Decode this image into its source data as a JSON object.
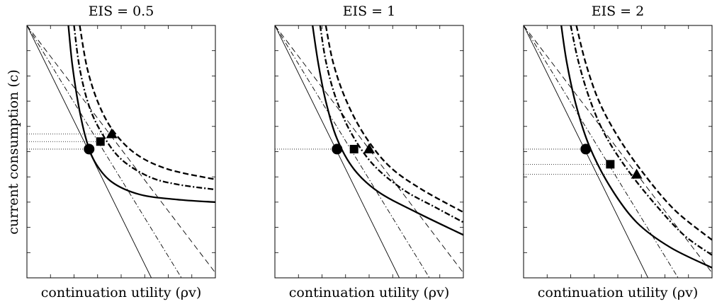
{
  "figure": {
    "ylabel": "current consumption (c)",
    "xlabel": "continuation utility (ρv)"
  },
  "chart_data": [
    {
      "type": "line",
      "title": "EIS = 0.5",
      "xlabel": "continuation utility (ρv)",
      "ylabel": "current consumption (c)",
      "xlim": [
        0,
        1
      ],
      "ylim": [
        0,
        1
      ],
      "grid": false,
      "series": [
        {
          "style": "thin-solid",
          "points": [
            [
              0,
              1
            ],
            [
              0.66,
              0
            ]
          ]
        },
        {
          "style": "thin-dash-dot",
          "points": [
            [
              0,
              1
            ],
            [
              0.82,
              0
            ]
          ]
        },
        {
          "style": "thin-dashed",
          "points": [
            [
              0,
              1
            ],
            [
              1,
              0.02
            ]
          ]
        },
        {
          "style": "thick-solid",
          "points": [
            [
              0.22,
              1
            ],
            [
              0.24,
              0.85
            ],
            [
              0.27,
              0.7
            ],
            [
              0.31,
              0.56
            ],
            [
              0.36,
              0.46
            ],
            [
              0.45,
              0.38
            ],
            [
              0.6,
              0.33
            ],
            [
              0.8,
              0.31
            ],
            [
              1,
              0.3
            ]
          ]
        },
        {
          "style": "thick-dash-dot",
          "points": [
            [
              0.25,
              1
            ],
            [
              0.28,
              0.83
            ],
            [
              0.33,
              0.68
            ],
            [
              0.4,
              0.57
            ],
            [
              0.5,
              0.47
            ],
            [
              0.65,
              0.4
            ],
            [
              0.8,
              0.37
            ],
            [
              1,
              0.35
            ]
          ]
        },
        {
          "style": "thick-dashed",
          "points": [
            [
              0.28,
              1
            ],
            [
              0.32,
              0.83
            ],
            [
              0.38,
              0.69
            ],
            [
              0.46,
              0.58
            ],
            [
              0.58,
              0.49
            ],
            [
              0.75,
              0.43
            ],
            [
              1,
              0.39
            ]
          ]
        }
      ],
      "markers": [
        {
          "shape": "circle",
          "x": 0.33,
          "y": 0.51
        },
        {
          "shape": "square",
          "x": 0.39,
          "y": 0.54
        },
        {
          "shape": "triangle",
          "x": 0.45,
          "y": 0.57
        }
      ],
      "guide_levels": [
        0.51,
        0.54,
        0.57
      ]
    },
    {
      "type": "line",
      "title": "EIS = 1",
      "xlabel": "continuation utility (ρv)",
      "ylabel": "current consumption (c)",
      "xlim": [
        0,
        1
      ],
      "ylim": [
        0,
        1
      ],
      "grid": false,
      "series": [
        {
          "style": "thin-solid",
          "points": [
            [
              0,
              1
            ],
            [
              0.66,
              0
            ]
          ]
        },
        {
          "style": "thin-dash-dot",
          "points": [
            [
              0,
              1
            ],
            [
              0.82,
              0
            ]
          ]
        },
        {
          "style": "thin-dashed",
          "points": [
            [
              0,
              1
            ],
            [
              1,
              0.02
            ]
          ]
        },
        {
          "style": "thick-solid",
          "points": [
            [
              0.2,
              1
            ],
            [
              0.23,
              0.85
            ],
            [
              0.27,
              0.7
            ],
            [
              0.33,
              0.55
            ],
            [
              0.42,
              0.43
            ],
            [
              0.55,
              0.34
            ],
            [
              0.75,
              0.26
            ],
            [
              1,
              0.17
            ]
          ]
        },
        {
          "style": "thick-dash-dot",
          "points": [
            [
              0.24,
              1
            ],
            [
              0.27,
              0.86
            ],
            [
              0.32,
              0.72
            ],
            [
              0.4,
              0.58
            ],
            [
              0.52,
              0.45
            ],
            [
              0.68,
              0.35
            ],
            [
              0.85,
              0.28
            ],
            [
              1,
              0.22
            ]
          ]
        },
        {
          "style": "thick-dashed",
          "points": [
            [
              0.27,
              1
            ],
            [
              0.31,
              0.85
            ],
            [
              0.38,
              0.7
            ],
            [
              0.48,
              0.56
            ],
            [
              0.61,
              0.44
            ],
            [
              0.78,
              0.35
            ],
            [
              1,
              0.26
            ]
          ]
        }
      ],
      "markers": [
        {
          "shape": "circle",
          "x": 0.33,
          "y": 0.51
        },
        {
          "shape": "square",
          "x": 0.42,
          "y": 0.51
        },
        {
          "shape": "triangle",
          "x": 0.5,
          "y": 0.51
        }
      ],
      "guide_levels": [
        0.51
      ]
    },
    {
      "type": "line",
      "title": "EIS = 2",
      "xlabel": "continuation utility (ρv)",
      "ylabel": "current consumption (c)",
      "xlim": [
        0,
        1
      ],
      "ylim": [
        0,
        1
      ],
      "grid": false,
      "series": [
        {
          "style": "thin-solid",
          "points": [
            [
              0,
              1
            ],
            [
              0.66,
              0
            ]
          ]
        },
        {
          "style": "thin-dash-dot",
          "points": [
            [
              0,
              1
            ],
            [
              0.82,
              0
            ]
          ]
        },
        {
          "style": "thin-dashed",
          "points": [
            [
              0,
              1
            ],
            [
              1,
              0.02
            ]
          ]
        },
        {
          "style": "thick-solid",
          "points": [
            [
              0.2,
              1
            ],
            [
              0.23,
              0.85
            ],
            [
              0.28,
              0.68
            ],
            [
              0.35,
              0.52
            ],
            [
              0.46,
              0.36
            ],
            [
              0.6,
              0.22
            ],
            [
              0.78,
              0.12
            ],
            [
              1,
              0.04
            ]
          ]
        },
        {
          "style": "thick-dash-dot",
          "points": [
            [
              0.25,
              1
            ],
            [
              0.29,
              0.86
            ],
            [
              0.35,
              0.71
            ],
            [
              0.43,
              0.57
            ],
            [
              0.55,
              0.43
            ],
            [
              0.7,
              0.29
            ],
            [
              0.85,
              0.17
            ],
            [
              1,
              0.09
            ]
          ]
        },
        {
          "style": "thick-dashed",
          "points": [
            [
              0.28,
              1
            ],
            [
              0.33,
              0.85
            ],
            [
              0.4,
              0.7
            ],
            [
              0.5,
              0.56
            ],
            [
              0.63,
              0.42
            ],
            [
              0.8,
              0.27
            ],
            [
              1,
              0.15
            ]
          ]
        }
      ],
      "markers": [
        {
          "shape": "circle",
          "x": 0.33,
          "y": 0.51
        },
        {
          "shape": "square",
          "x": 0.46,
          "y": 0.45
        },
        {
          "shape": "triangle",
          "x": 0.6,
          "y": 0.41
        }
      ],
      "guide_levels": [
        0.51,
        0.45,
        0.41
      ]
    }
  ]
}
